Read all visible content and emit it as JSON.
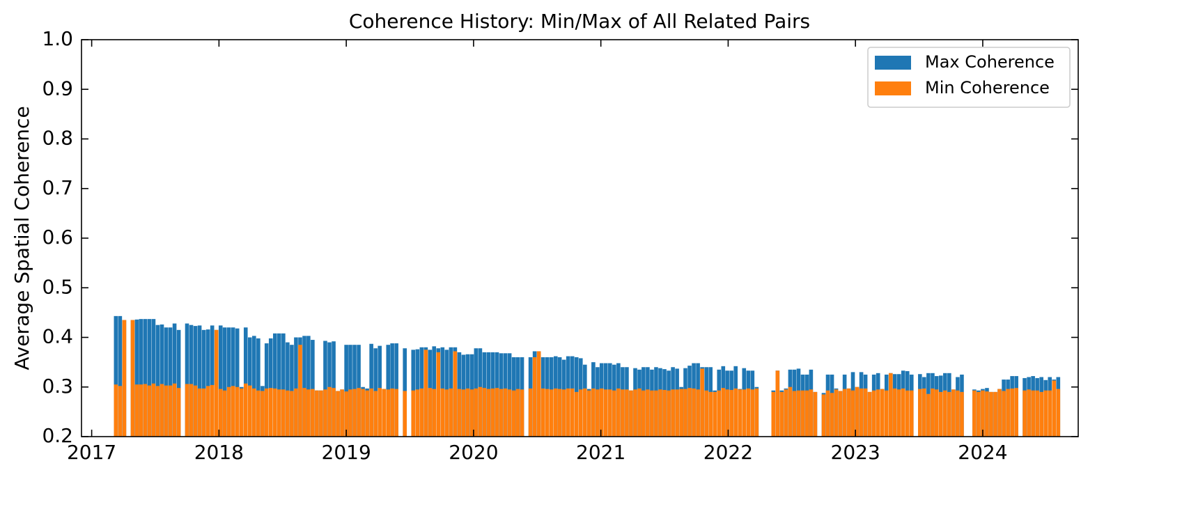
{
  "chart_data": {
    "type": "bar",
    "title": "Coherence History: Min/Max of All Related Pairs",
    "ylabel": "Average Spatial Coherence",
    "x": [
      2017.19,
      2017.223,
      2017.256,
      2017.322,
      2017.355,
      2017.387,
      2017.42,
      2017.453,
      2017.486,
      2017.519,
      2017.552,
      2017.585,
      2017.618,
      2017.651,
      2017.684,
      2017.749,
      2017.782,
      2017.815,
      2017.848,
      2017.881,
      2017.914,
      2017.947,
      2017.98,
      2018.013,
      2018.045,
      2018.078,
      2018.111,
      2018.144,
      2018.177,
      2018.21,
      2018.243,
      2018.276,
      2018.309,
      2018.342,
      2018.374,
      2018.407,
      2018.44,
      2018.473,
      2018.506,
      2018.539,
      2018.572,
      2018.605,
      2018.638,
      2018.671,
      2018.703,
      2018.736,
      2018.769,
      2018.802,
      2018.835,
      2018.868,
      2018.901,
      2018.934,
      2018.967,
      2019,
      2019.032,
      2019.065,
      2019.098,
      2019.131,
      2019.164,
      2019.197,
      2019.23,
      2019.263,
      2019.296,
      2019.329,
      2019.361,
      2019.394,
      2019.46,
      2019.526,
      2019.559,
      2019.592,
      2019.625,
      2019.658,
      2019.69,
      2019.723,
      2019.756,
      2019.789,
      2019.822,
      2019.855,
      2019.888,
      2019.921,
      2019.954,
      2019.987,
      2020.019,
      2020.052,
      2020.085,
      2020.118,
      2020.151,
      2020.184,
      2020.217,
      2020.25,
      2020.283,
      2020.316,
      2020.348,
      2020.381,
      2020.447,
      2020.48,
      2020.513,
      2020.546,
      2020.579,
      2020.612,
      2020.645,
      2020.677,
      2020.71,
      2020.743,
      2020.776,
      2020.809,
      2020.842,
      2020.875,
      2020.908,
      2020.941,
      2020.974,
      2021.006,
      2021.039,
      2021.072,
      2021.105,
      2021.138,
      2021.171,
      2021.204,
      2021.237,
      2021.27,
      2021.303,
      2021.335,
      2021.368,
      2021.401,
      2021.434,
      2021.467,
      2021.5,
      2021.533,
      2021.566,
      2021.599,
      2021.632,
      2021.664,
      2021.697,
      2021.73,
      2021.763,
      2021.796,
      2021.829,
      2021.862,
      2021.895,
      2021.928,
      2021.961,
      2021.993,
      2022.026,
      2022.059,
      2022.092,
      2022.125,
      2022.158,
      2022.191,
      2022.224,
      2022.355,
      2022.388,
      2022.421,
      2022.454,
      2022.487,
      2022.52,
      2022.553,
      2022.586,
      2022.619,
      2022.651,
      2022.684,
      2022.75,
      2022.783,
      2022.816,
      2022.849,
      2022.882,
      2022.915,
      2022.948,
      2022.98,
      2023.013,
      2023.046,
      2023.079,
      2023.112,
      2023.145,
      2023.178,
      2023.211,
      2023.244,
      2023.277,
      2023.309,
      2023.342,
      2023.375,
      2023.408,
      2023.441,
      2023.507,
      2023.54,
      2023.573,
      2023.606,
      2023.638,
      2023.671,
      2023.704,
      2023.737,
      2023.77,
      2023.803,
      2023.836,
      2023.934,
      2023.967,
      2024,
      2024.033,
      2024.066,
      2024.099,
      2024.132,
      2024.165,
      2024.198,
      2024.231,
      2024.264,
      2024.329,
      2024.362,
      2024.395,
      2024.428,
      2024.461,
      2024.494,
      2024.527,
      2024.56,
      2024.593
    ],
    "series": [
      {
        "name": "Max Coherence",
        "color": "#1f77b4",
        "values": [
          0.443,
          0.443,
          0.435,
          0.435,
          0.436,
          0.437,
          0.437,
          0.437,
          0.437,
          0.425,
          0.426,
          0.42,
          0.42,
          0.428,
          0.415,
          0.428,
          0.425,
          0.423,
          0.424,
          0.415,
          0.416,
          0.424,
          0.415,
          0.424,
          0.42,
          0.42,
          0.42,
          0.418,
          0.3,
          0.42,
          0.4,
          0.403,
          0.398,
          0.302,
          0.388,
          0.398,
          0.408,
          0.408,
          0.408,
          0.39,
          0.385,
          0.4,
          0.4,
          0.403,
          0.403,
          0.395,
          0.293,
          0.293,
          0.393,
          0.39,
          0.392,
          0.292,
          0.295,
          0.385,
          0.385,
          0.385,
          0.385,
          0.3,
          0.297,
          0.387,
          0.378,
          0.383,
          0.296,
          0.385,
          0.388,
          0.388,
          0.378,
          0.375,
          0.376,
          0.38,
          0.38,
          0.375,
          0.382,
          0.378,
          0.38,
          0.375,
          0.38,
          0.38,
          0.37,
          0.365,
          0.366,
          0.366,
          0.378,
          0.378,
          0.37,
          0.37,
          0.37,
          0.37,
          0.368,
          0.368,
          0.368,
          0.36,
          0.36,
          0.36,
          0.36,
          0.372,
          0.372,
          0.36,
          0.36,
          0.36,
          0.362,
          0.36,
          0.355,
          0.362,
          0.362,
          0.36,
          0.358,
          0.345,
          0.296,
          0.35,
          0.34,
          0.348,
          0.348,
          0.348,
          0.345,
          0.348,
          0.34,
          0.34,
          0.293,
          0.338,
          0.335,
          0.34,
          0.34,
          0.335,
          0.34,
          0.338,
          0.336,
          0.333,
          0.34,
          0.337,
          0.3,
          0.338,
          0.343,
          0.348,
          0.348,
          0.34,
          0.34,
          0.34,
          0.293,
          0.335,
          0.342,
          0.333,
          0.333,
          0.342,
          0.296,
          0.338,
          0.333,
          0.333,
          0.3,
          0.293,
          0.333,
          0.293,
          0.297,
          0.335,
          0.335,
          0.337,
          0.325,
          0.325,
          0.335,
          0.29,
          0.288,
          0.325,
          0.325,
          0.297,
          0.292,
          0.325,
          0.297,
          0.33,
          0.3,
          0.33,
          0.325,
          0.29,
          0.325,
          0.328,
          0.296,
          0.325,
          0.328,
          0.326,
          0.326,
          0.333,
          0.332,
          0.325,
          0.326,
          0.32,
          0.328,
          0.328,
          0.322,
          0.323,
          0.328,
          0.328,
          0.295,
          0.32,
          0.325,
          0.295,
          0.293,
          0.296,
          0.298,
          0.29,
          0.29,
          0.296,
          0.315,
          0.315,
          0.322,
          0.322,
          0.318,
          0.32,
          0.322,
          0.318,
          0.32,
          0.314,
          0.32,
          0.315,
          0.32
        ]
      },
      {
        "name": "Min Coherence",
        "color": "#ff7f0e",
        "values": [
          0.305,
          0.302,
          0.435,
          0.435,
          0.305,
          0.305,
          0.306,
          0.303,
          0.307,
          0.302,
          0.306,
          0.303,
          0.303,
          0.307,
          0.298,
          0.306,
          0.306,
          0.303,
          0.297,
          0.297,
          0.302,
          0.304,
          0.415,
          0.296,
          0.293,
          0.3,
          0.302,
          0.3,
          0.297,
          0.307,
          0.303,
          0.297,
          0.293,
          0.292,
          0.297,
          0.298,
          0.297,
          0.295,
          0.295,
          0.293,
          0.292,
          0.297,
          0.385,
          0.298,
          0.295,
          0.296,
          0.293,
          0.293,
          0.295,
          0.3,
          0.298,
          0.292,
          0.295,
          0.291,
          0.295,
          0.296,
          0.298,
          0.296,
          0.293,
          0.297,
          0.292,
          0.298,
          0.296,
          0.295,
          0.297,
          0.296,
          0.292,
          0.293,
          0.295,
          0.297,
          0.375,
          0.298,
          0.296,
          0.37,
          0.297,
          0.295,
          0.297,
          0.372,
          0.296,
          0.295,
          0.297,
          0.295,
          0.297,
          0.3,
          0.298,
          0.296,
          0.297,
          0.298,
          0.296,
          0.297,
          0.295,
          0.293,
          0.296,
          0.295,
          0.297,
          0.36,
          0.372,
          0.297,
          0.296,
          0.295,
          0.297,
          0.296,
          0.295,
          0.297,
          0.297,
          0.29,
          0.295,
          0.297,
          0.293,
          0.297,
          0.295,
          0.297,
          0.295,
          0.295,
          0.293,
          0.297,
          0.295,
          0.295,
          0.293,
          0.295,
          0.297,
          0.293,
          0.295,
          0.293,
          0.293,
          0.295,
          0.294,
          0.293,
          0.295,
          0.295,
          0.296,
          0.296,
          0.298,
          0.297,
          0.295,
          0.337,
          0.293,
          0.29,
          0.29,
          0.293,
          0.298,
          0.295,
          0.294,
          0.297,
          0.295,
          0.295,
          0.297,
          0.295,
          0.297,
          0.29,
          0.333,
          0.29,
          0.295,
          0.3,
          0.292,
          0.293,
          0.293,
          0.293,
          0.295,
          0.29,
          0.285,
          0.293,
          0.288,
          0.295,
          0.292,
          0.296,
          0.297,
          0.293,
          0.3,
          0.297,
          0.297,
          0.29,
          0.293,
          0.295,
          0.296,
          0.293,
          0.328,
          0.297,
          0.295,
          0.297,
          0.293,
          0.293,
          0.296,
          0.297,
          0.286,
          0.297,
          0.295,
          0.29,
          0.293,
          0.29,
          0.295,
          0.293,
          0.29,
          0.293,
          0.29,
          0.293,
          0.291,
          0.29,
          0.29,
          0.296,
          0.292,
          0.296,
          0.297,
          0.298,
          0.293,
          0.295,
          0.293,
          0.293,
          0.29,
          0.293,
          0.293,
          0.313,
          0.296
        ]
      }
    ],
    "xlim": [
      2016.92,
      2024.75
    ],
    "xticks": [
      2017,
      2018,
      2019,
      2020,
      2021,
      2022,
      2023,
      2024
    ],
    "ylim": [
      0.2,
      1.0
    ],
    "yticks": [
      0.2,
      0.3,
      0.4,
      0.5,
      0.6,
      0.7,
      0.8,
      0.9,
      {
        "value": 1.0,
        "label": "1.0"
      }
    ],
    "legend": "upper right"
  }
}
